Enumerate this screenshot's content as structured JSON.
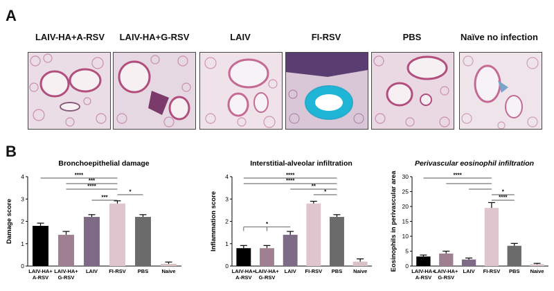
{
  "panel_a": {
    "letter": "A",
    "images": [
      {
        "label": "LAIV-HA+A-RSV",
        "tissue": "lung-histology-a-rsv",
        "highlight": ""
      },
      {
        "label": "LAIV-HA+G-RSV",
        "tissue": "lung-histology-g-rsv",
        "highlight": ""
      },
      {
        "label": "LAIV",
        "tissue": "lung-histology-laiv",
        "highlight": ""
      },
      {
        "label": "FI-RSV",
        "tissue": "lung-histology-fi-rsv",
        "highlight": "#1fb5d6"
      },
      {
        "label": "PBS",
        "tissue": "lung-histology-pbs",
        "highlight": ""
      },
      {
        "label": "Naïve no infection",
        "tissue": "lung-histology-naive",
        "highlight": ""
      }
    ]
  },
  "panel_b": {
    "letter": "B"
  },
  "colors": [
    "#000000",
    "#9e8090",
    "#7d6a84",
    "#dfc5cd",
    "#6b6b6b",
    "#d9c2c6"
  ],
  "chart_data": [
    {
      "type": "bar",
      "title": "Bronchoepithelial damage",
      "ylabel": "Damage score",
      "categories": [
        "LAIV-HA+\nA-RSV",
        "LAIV-HA+\nG-RSV",
        "LAIV",
        "FI-RSV",
        "PBS",
        "Naive"
      ],
      "values": [
        1.8,
        1.4,
        2.2,
        2.8,
        2.2,
        0.1
      ],
      "errors": [
        0.12,
        0.15,
        0.1,
        0.12,
        0.1,
        0.08
      ],
      "ylim": [
        0,
        4
      ],
      "yticks": [
        0,
        1,
        2,
        3,
        4
      ],
      "significance": [
        {
          "from": 0,
          "to": 3,
          "label": "****"
        },
        {
          "from": 1,
          "to": 3,
          "label": "***"
        },
        {
          "from": 1,
          "to": 3,
          "label": "****"
        },
        {
          "from": 3,
          "to": 4,
          "label": "*"
        },
        {
          "from": 2,
          "to": 3,
          "label": "***"
        }
      ]
    },
    {
      "type": "bar",
      "title": "Interstitial-alveolar infiltration",
      "ylabel": "Inflammation score",
      "categories": [
        "LAIV-HA+\nA-RSV",
        "LAIV-HA+\nG-RSV",
        "LAIV",
        "FI-RSV",
        "PBS",
        "Naive"
      ],
      "values": [
        0.8,
        0.8,
        1.4,
        2.8,
        2.2,
        0.2
      ],
      "errors": [
        0.12,
        0.12,
        0.15,
        0.1,
        0.1,
        0.12
      ],
      "ylim": [
        0,
        4
      ],
      "yticks": [
        0,
        1,
        2,
        3,
        4
      ],
      "significance": [
        {
          "from": 0,
          "to": 4,
          "label": "****"
        },
        {
          "from": 0,
          "to": 4,
          "label": "****"
        },
        {
          "from": 2,
          "to": 4,
          "label": "**"
        },
        {
          "from": 3,
          "to": 4,
          "label": "*"
        },
        {
          "from": 0,
          "to": 2,
          "label": "*"
        }
      ]
    },
    {
      "type": "bar",
      "title": "Perivascular eosinophil infiltration",
      "ylabel": "Eosinophils in perivascular area",
      "categories": [
        "LAIV-HA+\nA-RSV",
        "LAIV-HA+\nG-RSV",
        "LAIV",
        "FI-RSV",
        "PBS",
        "Naive"
      ],
      "values": [
        3.2,
        4.2,
        2.2,
        19.5,
        6.8,
        0.6
      ],
      "errors": [
        0.5,
        0.8,
        0.5,
        1.8,
        0.8,
        0.3
      ],
      "ylim": [
        0,
        30
      ],
      "yticks": [
        0,
        5,
        10,
        15,
        20,
        25,
        30
      ],
      "significance": [
        {
          "from": 0,
          "to": 3,
          "label": "****"
        },
        {
          "from": 1,
          "to": 3,
          "label": ""
        },
        {
          "from": 2,
          "to": 3,
          "label": ""
        },
        {
          "from": 3,
          "to": 4,
          "label": "*"
        },
        {
          "from": 3,
          "to": 4,
          "label": "****"
        }
      ]
    }
  ]
}
